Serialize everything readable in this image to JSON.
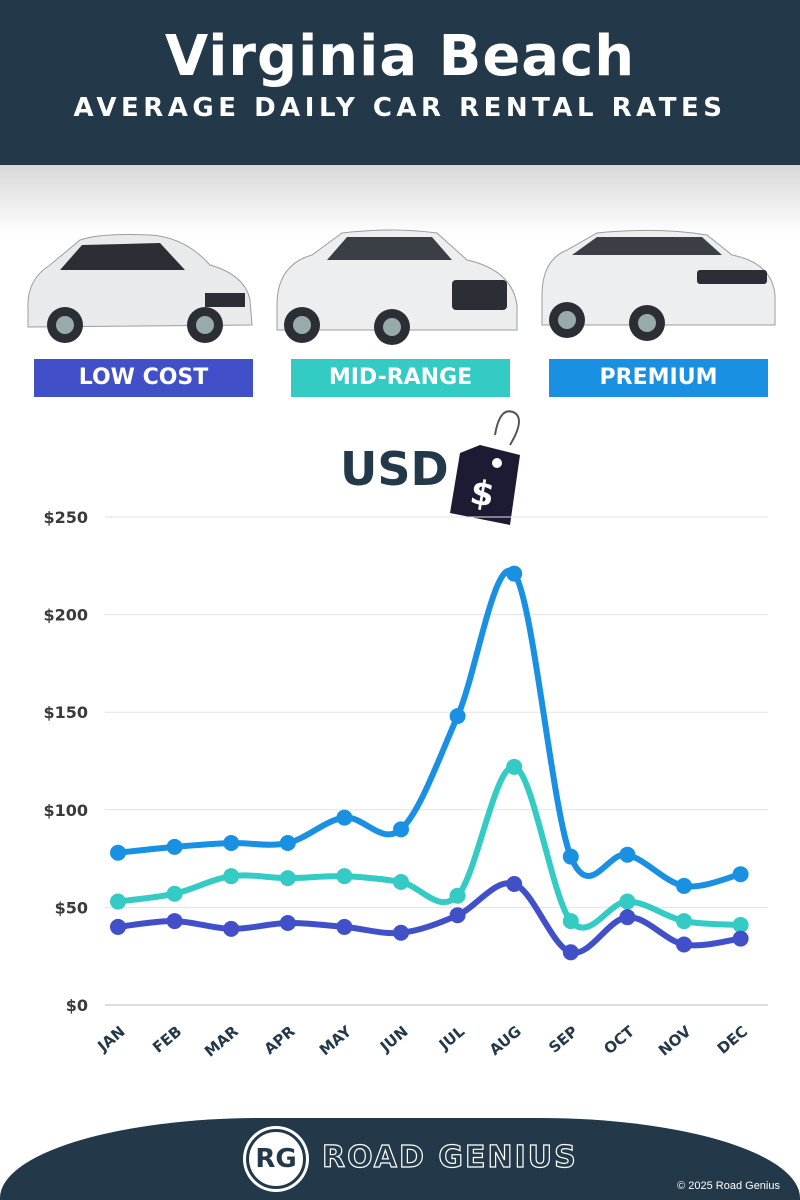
{
  "header": {
    "title": "Virginia Beach",
    "subtitle": "AVERAGE DAILY CAR RENTAL RATES"
  },
  "categories_legend": [
    {
      "label": "LOW COST",
      "color": "#4150c8"
    },
    {
      "label": "MID-RANGE",
      "color": "#33cbc3"
    },
    {
      "label": "PREMIUM",
      "color": "#1a90e3"
    }
  ],
  "currency": {
    "label": "USD",
    "tag_symbol": "$"
  },
  "chart_data": {
    "type": "line",
    "categories": [
      "JAN",
      "FEB",
      "MAR",
      "APR",
      "MAY",
      "JUN",
      "JUL",
      "AUG",
      "SEP",
      "OCT",
      "NOV",
      "DEC"
    ],
    "ylim": [
      0,
      250
    ],
    "yticks": [
      0,
      50,
      100,
      150,
      200,
      250
    ],
    "ytick_labels": [
      "$0",
      "$50",
      "$100",
      "$150",
      "$200",
      "$250"
    ],
    "grid": true,
    "series": [
      {
        "name": "PREMIUM",
        "color": "#1a90e3",
        "values": [
          78,
          81,
          83,
          83,
          96,
          90,
          148,
          221,
          76,
          77,
          61,
          67
        ]
      },
      {
        "name": "MID-RANGE",
        "color": "#33cbc3",
        "values": [
          53,
          57,
          66,
          65,
          66,
          63,
          56,
          122,
          43,
          53,
          43,
          41
        ]
      },
      {
        "name": "LOW COST",
        "color": "#4150c8",
        "values": [
          40,
          43,
          39,
          42,
          40,
          37,
          46,
          62,
          27,
          45,
          31,
          34
        ]
      }
    ]
  },
  "footer": {
    "logo_mark": "RG",
    "brand": "ROAD GENIUS",
    "copyright": "© 2025 Road Genius"
  }
}
